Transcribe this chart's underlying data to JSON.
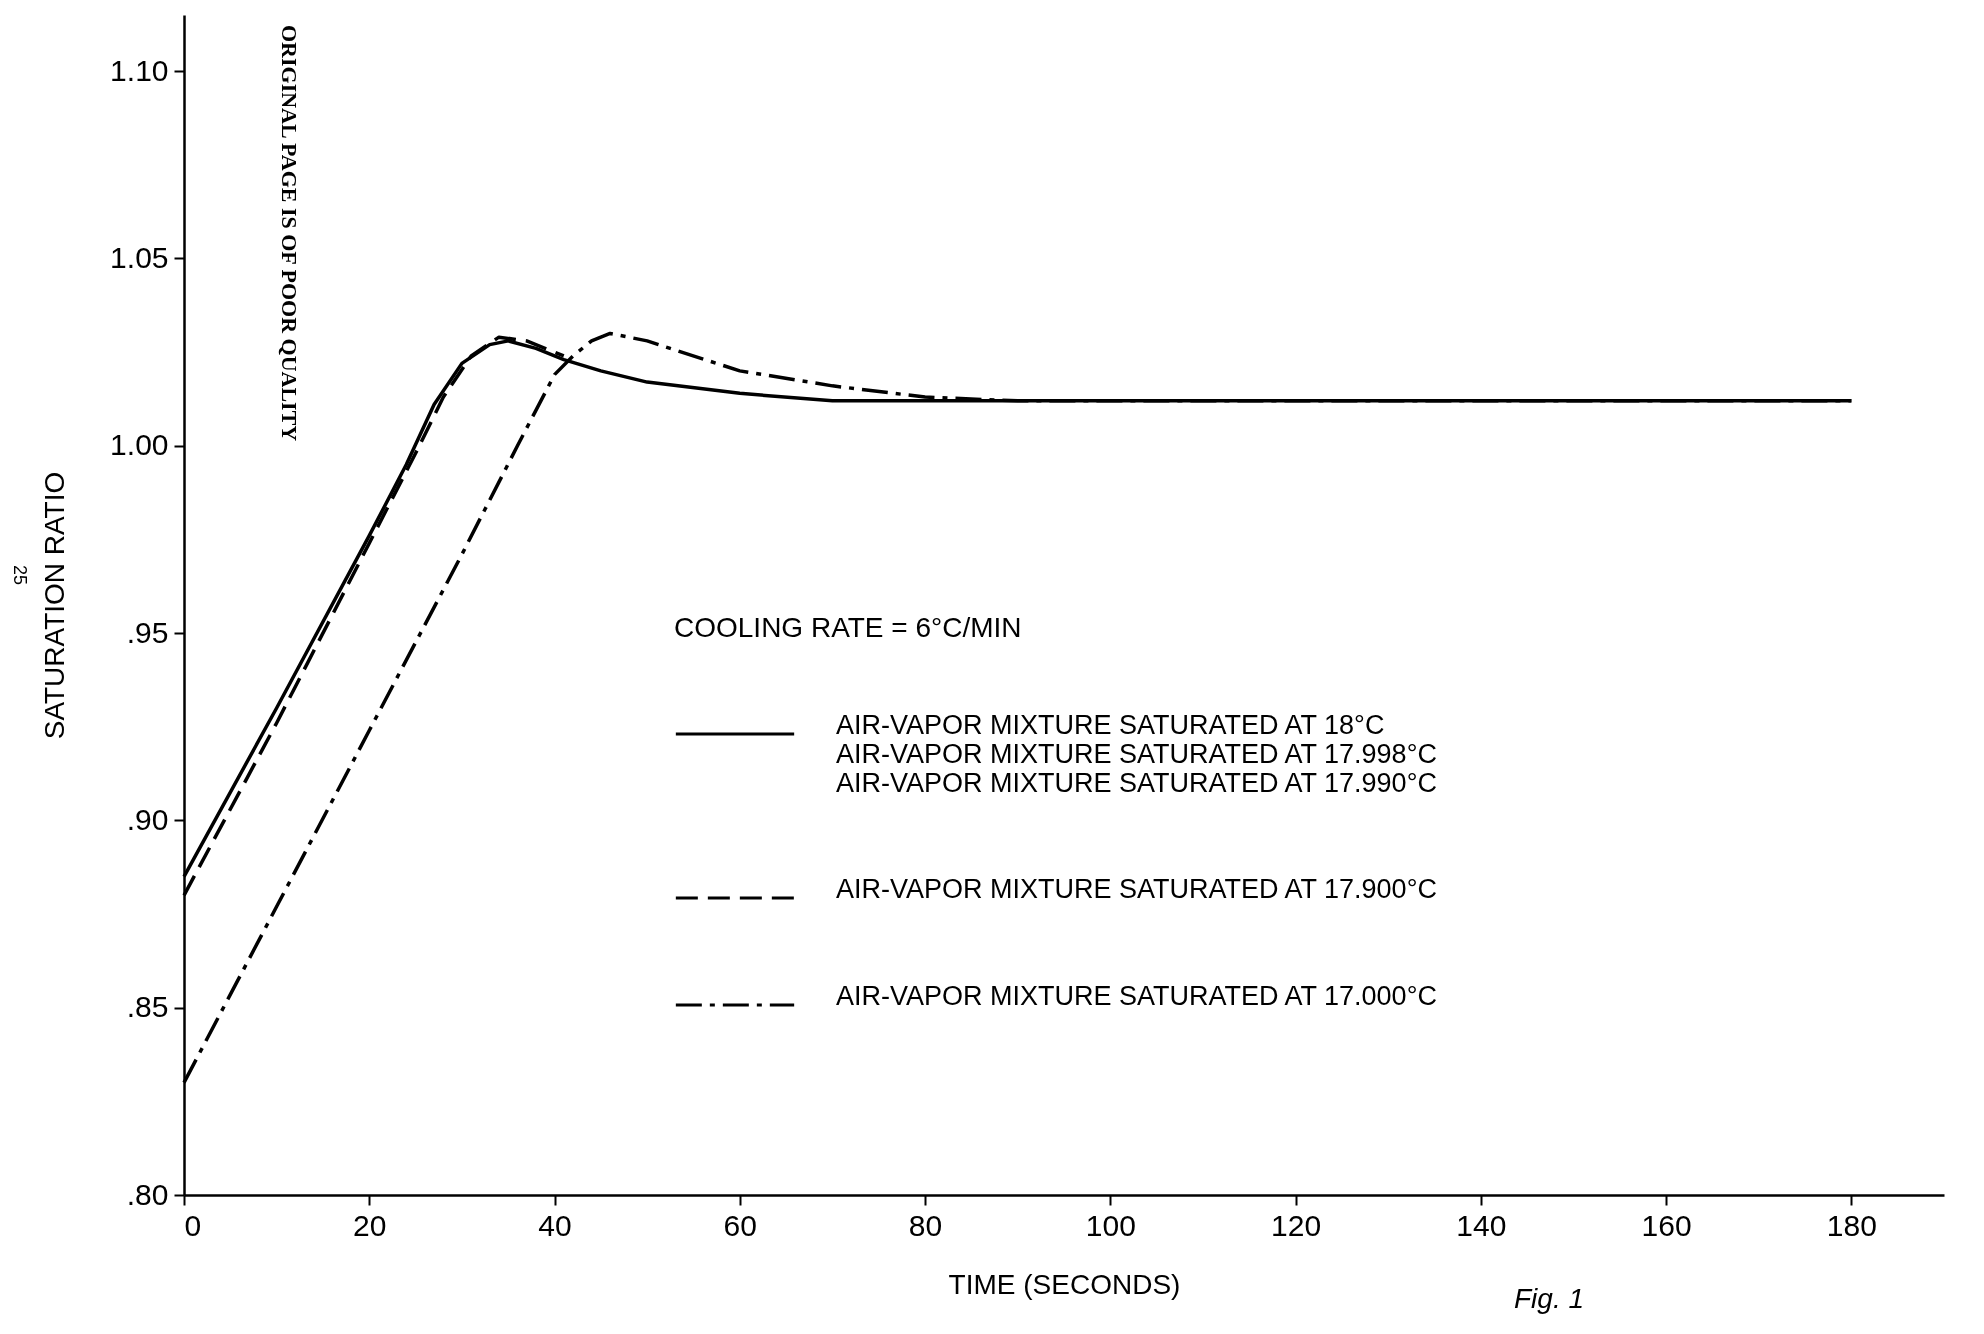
{
  "chart_data": {
    "type": "line",
    "xlabel": "TIME (SECONDS)",
    "ylabel": "SATURATION RATIO",
    "legend_title": "COOLING RATE = 6°C/MIN",
    "legend": "bottom right",
    "xlim": [
      0,
      190
    ],
    "xticks": [
      0,
      20,
      40,
      60,
      80,
      100,
      120,
      140,
      160,
      180
    ],
    "ylim": [
      0.8,
      1.115
    ],
    "yticks": [
      {
        "value": 0.8,
        "label": ".80"
      },
      {
        "value": 0.85,
        "label": ".85"
      },
      {
        "value": 0.9,
        "label": ".90"
      },
      {
        "value": 0.95,
        "label": ".95"
      },
      {
        "value": 1.0,
        "label": "1.00"
      },
      {
        "value": 1.05,
        "label": "1.05"
      },
      {
        "value": 1.1,
        "label": "1.10"
      }
    ],
    "grid": false,
    "series": [
      {
        "name": "AIR-VAPOR MIXTURE SATURATED AT 18°C",
        "color": "#000000",
        "line_style": "solid",
        "x": [
          0,
          10,
          20,
          24,
          27,
          30,
          33,
          35,
          38,
          41,
          45,
          50,
          60,
          70,
          80,
          100,
          140,
          180
        ],
        "values": [
          0.885,
          0.93,
          0.976,
          0.995,
          1.011,
          1.022,
          1.027,
          1.028,
          1.026,
          1.023,
          1.02,
          1.017,
          1.014,
          1.012,
          1.012,
          1.012,
          1.012,
          1.012
        ]
      },
      {
        "name": "AIR-VAPOR MIXTURE SATURATED AT 17.900°C",
        "color": "#000000",
        "line_style": "dashed",
        "x": [
          0,
          10,
          20,
          25,
          28,
          31,
          34,
          37,
          41
        ],
        "values": [
          0.88,
          0.926,
          0.974,
          0.998,
          1.013,
          1.024,
          1.029,
          1.028,
          1.024
        ]
      },
      {
        "name": "AIR-VAPOR MIXTURE SATURATED AT 17.000°C",
        "color": "#000000",
        "line_style": "dashdot",
        "x": [
          0,
          10,
          20,
          30,
          36,
          40,
          42,
          44,
          46,
          50,
          60,
          70,
          80,
          90,
          100,
          180
        ],
        "values": [
          0.83,
          0.877,
          0.924,
          0.971,
          1.0,
          1.019,
          1.024,
          1.028,
          1.03,
          1.028,
          1.02,
          1.016,
          1.013,
          1.012,
          1.012,
          1.012
        ]
      }
    ],
    "annotations": [
      "AIR-VAPOR MIXTURE SATURATED AT 17.998°C",
      "AIR-VAPOR MIXTURE SATURATED AT 17.990°C",
      "ORIGINAL PAGE IS OF POOR QUALITY",
      "25",
      "Fig. 1"
    ]
  }
}
